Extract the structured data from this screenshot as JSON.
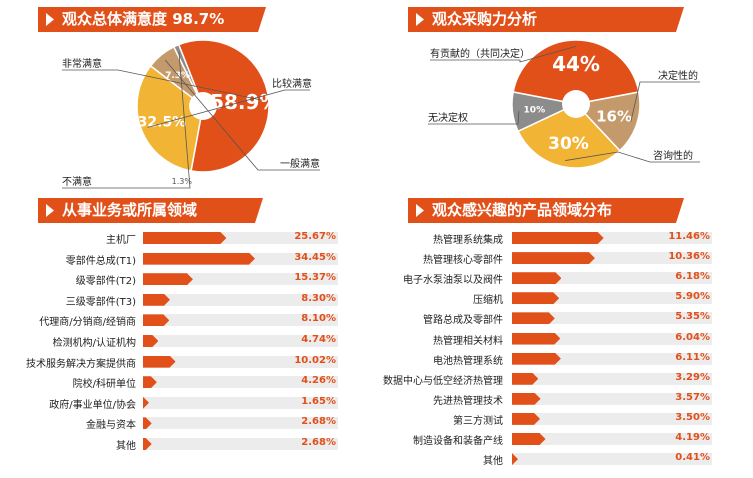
{
  "colors": {
    "accent": "#e2501a",
    "orange_light": "#f2b434",
    "tan": "#c49a6c",
    "gray": "#8c8c8c",
    "track": "#ececec"
  },
  "panels": {
    "satisfaction_title": "观众总体满意度 98.7%",
    "purchase_title": "观众采购力分析",
    "business_title": "从事业务或所属领域",
    "interest_title": "观众感兴趣的产品领域分布"
  },
  "chart_data": [
    {
      "type": "pie",
      "id": "satisfaction",
      "slices": [
        {
          "label": "非常满意",
          "value": 58.9,
          "display": "58.9%",
          "color": "#e2501a"
        },
        {
          "label": "比较满意",
          "value": 32.5,
          "display": "32.5%",
          "color": "#f2b434"
        },
        {
          "label": "一般满意",
          "value": 7.3,
          "display": "7.3%",
          "color": "#c49a6c"
        },
        {
          "label": "不满意",
          "value": 1.3,
          "display": "1.3%",
          "color": "#8c8c8c"
        }
      ]
    },
    {
      "type": "pie",
      "id": "purchase",
      "slices": [
        {
          "label": "有贡献的（共同决定）",
          "value": 44,
          "display": "44%",
          "color": "#e2501a"
        },
        {
          "label": "决定性的",
          "value": 16,
          "display": "16%",
          "color": "#c49a6c"
        },
        {
          "label": "咨询性的",
          "value": 30,
          "display": "30%",
          "color": "#f2b434"
        },
        {
          "label": "无决定权",
          "value": 10,
          "display": "10%",
          "color": "#8c8c8c"
        }
      ]
    },
    {
      "type": "bar",
      "id": "business",
      "categories": [
        "主机厂",
        "零部件总成(T1)",
        "级零部件(T2)",
        "三级零部件(T3)",
        "代理商/分销商/经销商",
        "检测机构/认证机构",
        "技术服务解决方案提供商",
        "院校/科研单位",
        "政府/事业单位/协会",
        "金融与资本",
        "其他"
      ],
      "values": [
        25.67,
        34.45,
        15.37,
        8.3,
        8.1,
        4.74,
        10.02,
        4.26,
        1.65,
        2.68,
        2.68
      ],
      "labels": [
        "25.67%",
        "34.45%",
        "15.37%",
        "8.30%",
        "8.10%",
        "4.74%",
        "10.02%",
        "4.26%",
        "1.65%",
        "2.68%",
        "2.68%"
      ],
      "xlim": [
        0,
        60
      ]
    },
    {
      "type": "bar",
      "id": "interest",
      "categories": [
        "热管理系统集成",
        "热管理核心零部件",
        "电子水泵油泵以及阀件",
        "压缩机",
        "管路总成及零部件",
        "热管理相关材料",
        "电池热管理系统",
        "数据中心与低空经济热管理",
        "先进热管理技术",
        "第三方测试",
        "制造设备和装备产线",
        "其他"
      ],
      "values": [
        11.46,
        10.36,
        6.18,
        5.9,
        5.35,
        6.04,
        6.11,
        3.29,
        3.57,
        3.5,
        4.19,
        0.41
      ],
      "labels": [
        "11.46%",
        "10.36%",
        "6.18%",
        "5.90%",
        "5.35%",
        "6.04%",
        "6.11%",
        "3.29%",
        "3.57%",
        "3.50%",
        "4.19%",
        "0.41%"
      ],
      "xlim": [
        0,
        25
      ]
    }
  ]
}
